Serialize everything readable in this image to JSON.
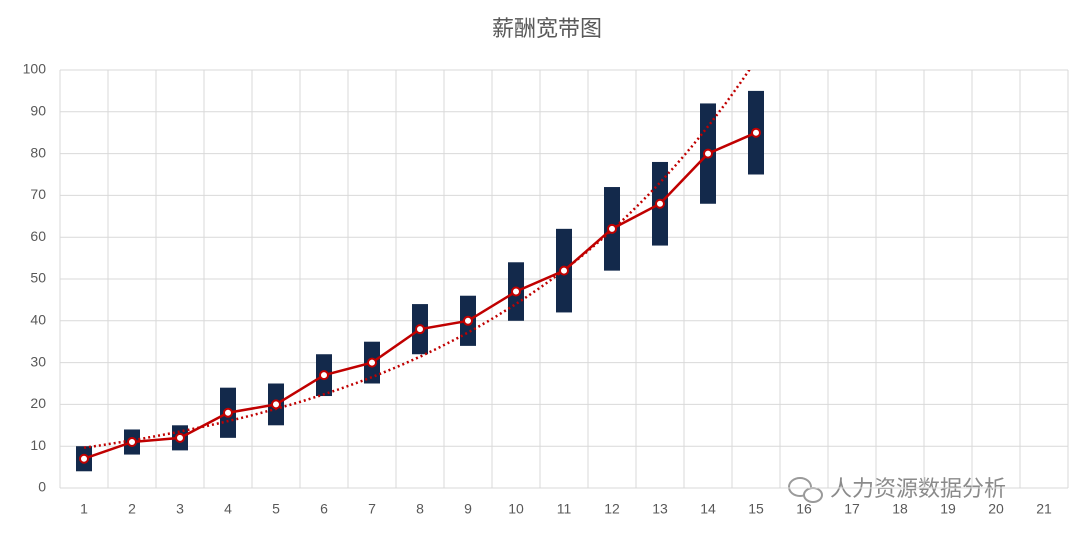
{
  "chart_data": {
    "type": "band",
    "title": "薪酬宽带图",
    "categories": [
      "1",
      "2",
      "3",
      "4",
      "5",
      "6",
      "7",
      "8",
      "9",
      "10",
      "11",
      "12",
      "13",
      "14",
      "15",
      "16",
      "17",
      "18",
      "19",
      "20",
      "21"
    ],
    "low": [
      4,
      8,
      9,
      12,
      15,
      22,
      25,
      32,
      34,
      40,
      42,
      52,
      58,
      68,
      75,
      null,
      null,
      null,
      null,
      null,
      null
    ],
    "high": [
      10,
      14,
      15,
      24,
      25,
      32,
      35,
      44,
      46,
      54,
      62,
      72,
      78,
      92,
      95,
      null,
      null,
      null,
      null,
      null,
      null
    ],
    "mid": [
      7,
      11,
      12,
      18,
      20,
      27,
      30,
      38,
      40,
      47,
      52,
      62,
      68,
      80,
      85,
      null,
      null,
      null,
      null,
      null,
      null
    ],
    "bar_color": "#13294b",
    "line_color": "#c00000",
    "trendline": {
      "type": "exponential",
      "color": "#c00000"
    },
    "ylim": [
      0,
      100
    ],
    "yticks": [
      0,
      10,
      20,
      30,
      40,
      50,
      60,
      70,
      80,
      90,
      100
    ],
    "grid": true
  },
  "watermark": "人力资源数据分析"
}
